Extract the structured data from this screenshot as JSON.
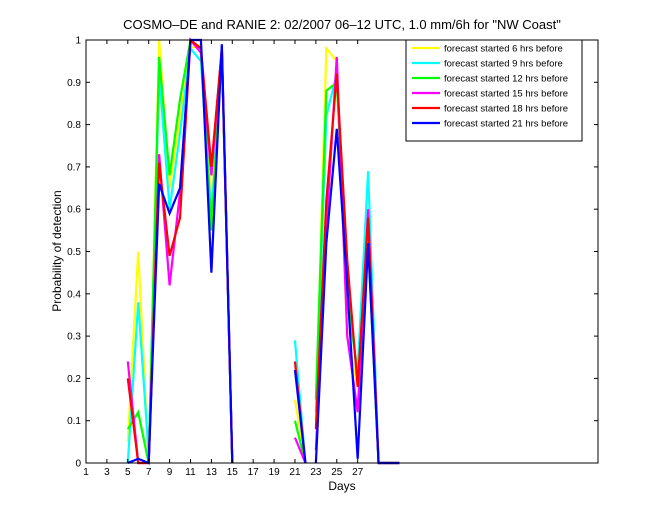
{
  "chart_data": {
    "type": "line",
    "title": "COSMO–DE and RANIE 2: 02/2007 06–12 UTC, 1.0 mm/6h for \"NW Coast\"",
    "xlabel": "Days",
    "ylabel": "Probability of detection",
    "xlim": [
      1,
      50
    ],
    "ylim": [
      0,
      1
    ],
    "x_ticks": [
      "1",
      "3",
      "5",
      "7",
      "9",
      "11",
      "13",
      "15",
      "17",
      "19",
      "21",
      "23",
      "25",
      "27"
    ],
    "y_ticks": [
      "0",
      "0.1",
      "0.2",
      "0.3",
      "0.4",
      "0.5",
      "0.6",
      "0.7",
      "0.8",
      "0.9",
      "1"
    ],
    "grid": false,
    "legend_position": "top-right",
    "series": [
      {
        "name": "forecast started 6 hrs before",
        "color": "#ffff00",
        "segments": [
          {
            "x": [
              5,
              6,
              7,
              8,
              9,
              10,
              11,
              12,
              13,
              14,
              15
            ],
            "y": [
              0.05,
              0.5,
              0.0,
              1.0,
              0.65,
              0.82,
              0.98,
              0.99,
              0.6,
              0.98,
              0.0
            ]
          },
          {
            "x": [
              21,
              22
            ],
            "y": [
              0.15,
              0.0
            ]
          },
          {
            "x": [
              23,
              24,
              25,
              26,
              27,
              28,
              29,
              30,
              31
            ],
            "y": [
              0.1,
              0.98,
              0.95,
              0.3,
              0.18,
              0.55,
              0.0,
              0.0,
              0.0
            ]
          }
        ]
      },
      {
        "name": "forecast started 9 hrs before",
        "color": "#00ffff",
        "segments": [
          {
            "x": [
              5,
              6,
              7,
              8,
              9,
              10,
              11,
              12,
              13,
              14,
              15
            ],
            "y": [
              0.0,
              0.38,
              0.02,
              0.92,
              0.6,
              0.78,
              0.98,
              0.95,
              0.58,
              0.97,
              0.0
            ]
          },
          {
            "x": [
              21,
              22
            ],
            "y": [
              0.29,
              0.0
            ]
          },
          {
            "x": [
              23,
              24,
              25,
              26,
              27,
              28,
              29,
              30,
              31
            ],
            "y": [
              0.12,
              0.82,
              0.92,
              0.38,
              0.22,
              0.69,
              0.0,
              0.0,
              0.0
            ]
          }
        ]
      },
      {
        "name": "forecast started 12 hrs before",
        "color": "#00ff00",
        "segments": [
          {
            "x": [
              5,
              6,
              7,
              8,
              9,
              10,
              11,
              12,
              13,
              14,
              15
            ],
            "y": [
              0.08,
              0.12,
              0.0,
              0.96,
              0.68,
              0.86,
              1.0,
              0.97,
              0.55,
              0.97,
              0.0
            ]
          },
          {
            "x": [
              21,
              22
            ],
            "y": [
              0.1,
              0.0
            ]
          },
          {
            "x": [
              23,
              24,
              25,
              26,
              27,
              28,
              29,
              30,
              31
            ],
            "y": [
              0.15,
              0.88,
              0.9,
              0.42,
              0.2,
              0.52,
              0.0,
              0.0,
              0.0
            ]
          }
        ]
      },
      {
        "name": "forecast started 15 hrs before",
        "color": "#ff00ff",
        "segments": [
          {
            "x": [
              5,
              6,
              7,
              8,
              9,
              10,
              11,
              12,
              13,
              14,
              15
            ],
            "y": [
              0.24,
              0.0,
              0.0,
              0.73,
              0.42,
              0.64,
              1.0,
              0.97,
              0.68,
              0.98,
              0.0
            ]
          },
          {
            "x": [
              21,
              22
            ],
            "y": [
              0.06,
              0.0
            ]
          },
          {
            "x": [
              23,
              24,
              25,
              26,
              27,
              28,
              29,
              30,
              31
            ],
            "y": [
              0.03,
              0.55,
              0.96,
              0.3,
              0.12,
              0.6,
              0.0,
              0.0,
              0.0
            ]
          }
        ]
      },
      {
        "name": "forecast started 18 hrs before",
        "color": "#ff0000",
        "segments": [
          {
            "x": [
              5,
              6,
              7,
              8,
              9,
              10,
              11,
              12,
              13,
              14,
              15
            ],
            "y": [
              0.2,
              0.0,
              0.0,
              0.71,
              0.49,
              0.58,
              1.0,
              0.98,
              0.7,
              0.98,
              0.0
            ]
          },
          {
            "x": [
              21,
              22
            ],
            "y": [
              0.24,
              0.0
            ]
          },
          {
            "x": [
              23,
              24,
              25,
              26,
              27,
              28,
              29,
              30,
              31
            ],
            "y": [
              0.08,
              0.62,
              0.92,
              0.48,
              0.18,
              0.58,
              0.0,
              0.0,
              0.0
            ]
          }
        ]
      },
      {
        "name": "forecast started 21 hrs before",
        "color": "#0000ff",
        "segments": [
          {
            "x": [
              5,
              6,
              7,
              8,
              9,
              10,
              11,
              12,
              13,
              14,
              15
            ],
            "y": [
              0.0,
              0.01,
              0.0,
              0.66,
              0.59,
              0.65,
              1.0,
              1.0,
              0.45,
              0.99,
              0.0
            ]
          },
          {
            "x": [
              21,
              22
            ],
            "y": [
              0.22,
              0.0
            ]
          },
          {
            "x": [
              23,
              24,
              25,
              26,
              27,
              28,
              29,
              30,
              31
            ],
            "y": [
              0.0,
              0.52,
              0.79,
              0.42,
              0.01,
              0.52,
              0.0,
              0.0,
              0.0
            ]
          }
        ]
      }
    ]
  }
}
